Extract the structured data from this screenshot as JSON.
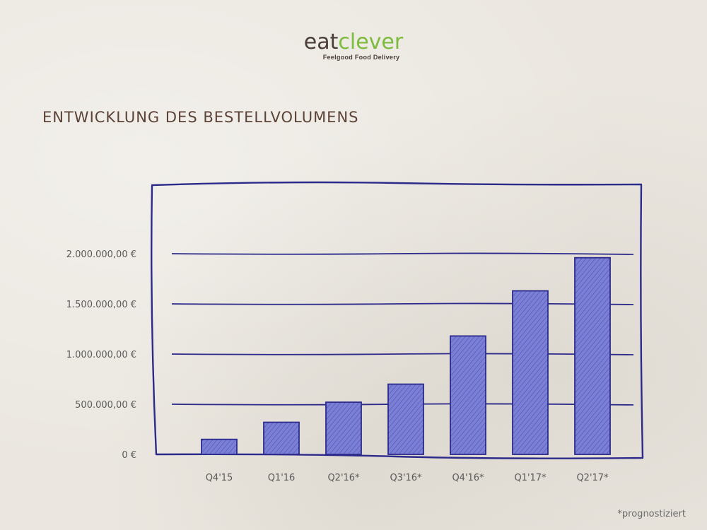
{
  "brand": {
    "name_part1": "eat",
    "name_part2": "clever",
    "tagline": "Feelgood Food Delivery"
  },
  "footnote": "*prognostiziert",
  "colors": {
    "bar_fill": "#7b7fd6",
    "ink": "#2c2a8a",
    "title": "#5c4338",
    "brand_green": "#7dbb3c"
  },
  "chart_data": {
    "type": "bar",
    "title": "ENTWICKLUNG DES BESTELLVOLUMENS",
    "xlabel": "",
    "ylabel": "",
    "categories": [
      "Q4'15",
      "Q1'16",
      "Q2'16*",
      "Q3'16*",
      "Q4'16*",
      "Q1'17*",
      "Q2'17*"
    ],
    "values": [
      150000,
      320000,
      520000,
      700000,
      1180000,
      1630000,
      1960000
    ],
    "ylim": [
      0,
      2000000
    ],
    "yticks": [
      0,
      500000,
      1000000,
      1500000,
      2000000
    ],
    "ytick_labels": [
      "0 €",
      "500.000,00 €",
      "1.000.000,00 €",
      "1.500.000,00 €",
      "2.000.000,00 €"
    ],
    "grid": true,
    "legend": "none"
  }
}
